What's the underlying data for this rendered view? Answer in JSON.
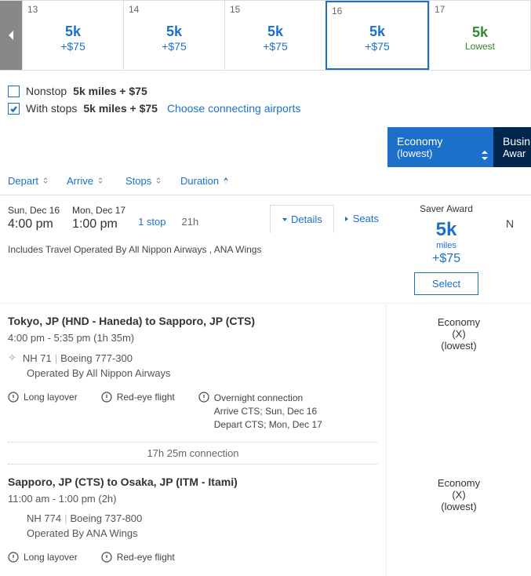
{
  "dates": [
    {
      "day": "13",
      "miles": "5k",
      "cost": "+$75",
      "selected": false,
      "lowest": false
    },
    {
      "day": "14",
      "miles": "5k",
      "cost": "+$75",
      "selected": false,
      "lowest": false
    },
    {
      "day": "15",
      "miles": "5k",
      "cost": "+$75",
      "selected": false,
      "lowest": false
    },
    {
      "day": "16",
      "miles": "5k",
      "cost": "+$75",
      "selected": true,
      "lowest": false
    },
    {
      "day": "17",
      "miles": "5k",
      "sub": "Lowest",
      "selected": false,
      "lowest": true
    }
  ],
  "filters": {
    "nonstop": {
      "label": "Nonstop",
      "value": "5k miles + $75",
      "checked": false
    },
    "withstops": {
      "label": "With stops",
      "value": "5k miles + $75",
      "checked": true
    },
    "airports_link": "Choose connecting airports"
  },
  "cabins": {
    "econ": {
      "title": "Economy",
      "sub": "(lowest)"
    },
    "biz": {
      "title": "Busin",
      "sub": "Awar"
    }
  },
  "sorts": {
    "depart": "Depart",
    "arrive": "Arrive",
    "stops": "Stops",
    "duration": "Duration"
  },
  "result": {
    "dep_date": "Sun, Dec 16",
    "dep_time": "4:00 pm",
    "arr_date": "Mon, Dec 17",
    "arr_time": "1:00 pm",
    "stops": "1 stop",
    "duration": "21h",
    "details": "Details",
    "seats": "Seats",
    "note": "Includes Travel Operated By All Nippon Airways , ANA Wings",
    "price": {
      "head": "Saver Award",
      "miles": "5k",
      "unit": "miles",
      "cost": "+$75",
      "btn": "Select"
    },
    "extra": "N"
  },
  "segments": [
    {
      "title": "Tokyo, JP (HND - Haneda) to Sapporo, JP (CTS)",
      "time": "4:00 pm - 5:35 pm (1h 35m)",
      "flight": "NH 71",
      "equip": "Boeing 777-300",
      "operated": "Operated By All Nippon Airways",
      "cabin": {
        "title": "Economy",
        "code": "(X)",
        "sub": "(lowest)"
      }
    },
    {
      "title": "Sapporo, JP (CTS) to Osaka, JP (ITM - Itami)",
      "time": "11:00 am - 1:00 pm (2h)",
      "flight": "NH 774",
      "equip": "Boeing 737-800",
      "operated": "Operated By ANA Wings",
      "cabin": {
        "title": "Economy",
        "code": "(X)",
        "sub": "(lowest)"
      }
    }
  ],
  "warnings1": {
    "layover": "Long layover",
    "redeye": "Red-eye flight",
    "overnight": {
      "t": "Overnight connection",
      "a": "Arrive CTS; Sun, Dec 16",
      "d": "Depart CTS; Mon, Dec 17"
    }
  },
  "warnings2": {
    "layover": "Long layover",
    "redeye": "Red-eye flight"
  },
  "connection": "17h 25m connection"
}
